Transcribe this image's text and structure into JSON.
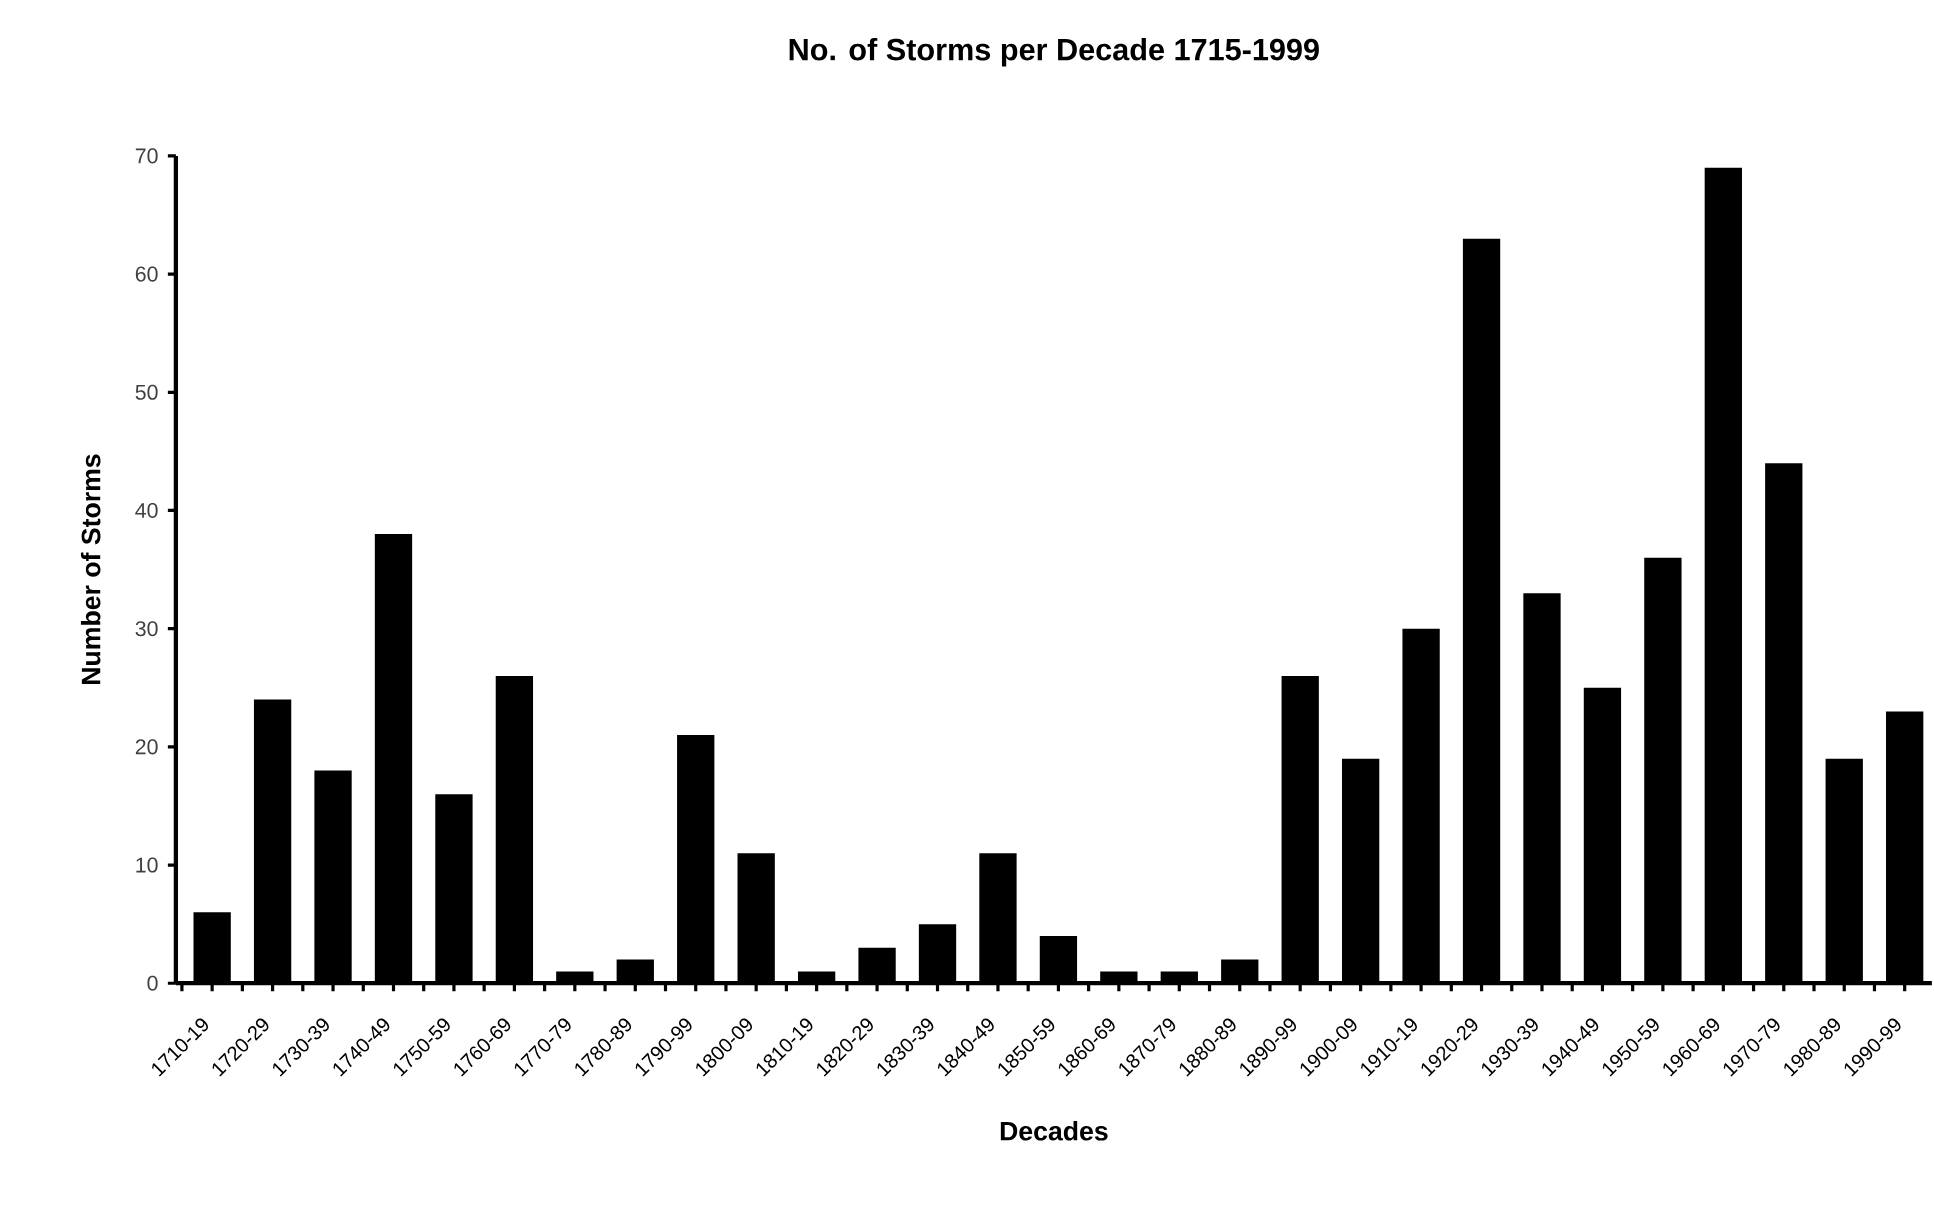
{
  "chart_data": {
    "type": "bar",
    "title": "No. of Storms per Decade 1715-1999",
    "xlabel": "Decades",
    "ylabel": "Number of Storms",
    "categories": [
      "1710-19",
      "1720-29",
      "1730-39",
      "1740-49",
      "1750-59",
      "1760-69",
      "1770-79",
      "1780-89",
      "1790-99",
      "1800-09",
      "1810-19",
      "1820-29",
      "1830-39",
      "1840-49",
      "1850-59",
      "1860-69",
      "1870-79",
      "1880-89",
      "1890-99",
      "1900-09",
      "1910-19",
      "1920-29",
      "1930-39",
      "1940-49",
      "1950-59",
      "1960-69",
      "1970-79",
      "1980-89",
      "1990-99"
    ],
    "values": [
      6,
      24,
      18,
      38,
      16,
      26,
      1,
      2,
      21,
      11,
      1,
      3,
      5,
      11,
      4,
      1,
      1,
      2,
      26,
      19,
      30,
      63,
      33,
      25,
      36,
      69,
      44,
      19,
      23
    ],
    "color": "#000000",
    "ylim": [
      0,
      70
    ],
    "yticks": [
      0,
      10,
      20,
      30,
      40,
      50,
      60,
      70
    ]
  }
}
